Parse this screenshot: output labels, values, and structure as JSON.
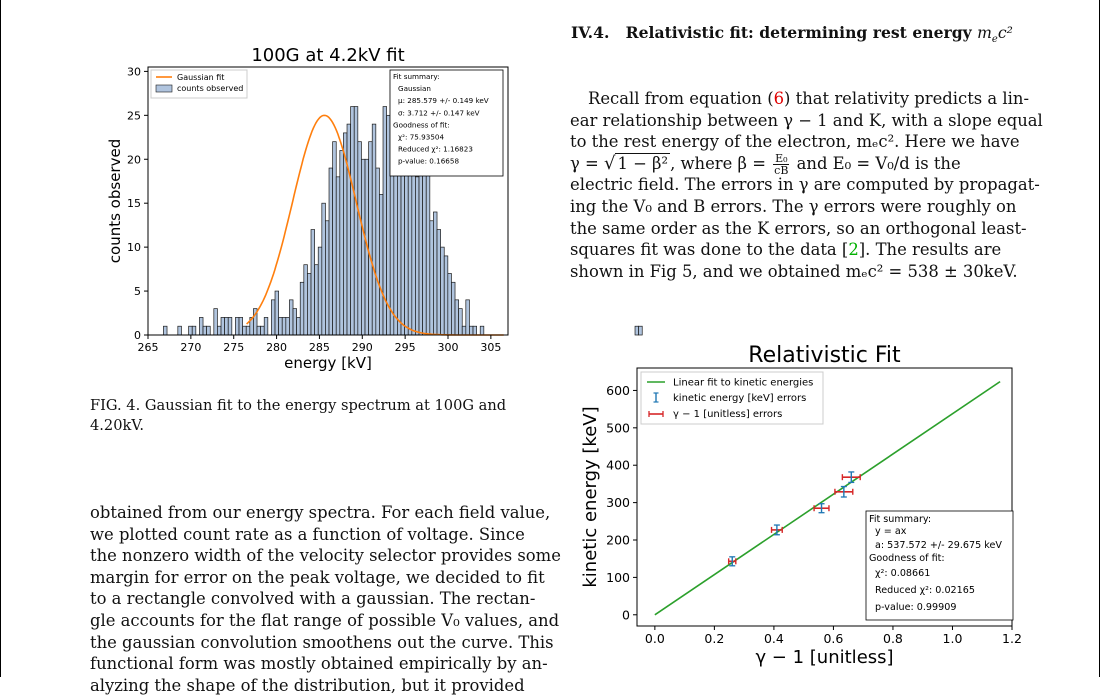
{
  "section": {
    "number": "IV.4.",
    "title": "Relativistic fit: determining rest energy",
    "title_symbol": "m",
    "title_symbol_sub": "e",
    "title_symbol_tail": "c²"
  },
  "right_text": {
    "l1a": "Recall from equation (",
    "l1_ref": "6",
    "l1b": ") that relativity predicts a lin-",
    "l2": "ear relationship between γ − 1 and K, with a slope equal",
    "l3": "to the rest energy of the electron, mₑc². Here we have",
    "l4a": "γ  =  ",
    "l4_sqrt": "1 − β²",
    "l4b": ", where  β  = ",
    "l4_num": "E₀",
    "l4_den": "cB",
    "l4c": " and  E₀  =  V₀/d  is the",
    "l5": "electric field. The errors in γ are computed by propagat-",
    "l6": "ing the V₀ and B errors. The γ errors were roughly on",
    "l7": "the same order as the K errors, so an orthogonal least-",
    "l8a": "squares fit was done to the data [",
    "l8_ref": "2",
    "l8b": "].  The results are",
    "l9": "shown in Fig 5, and we obtained mₑc² = 538 ± 30keV."
  },
  "fig4_caption": {
    "l1": "FIG. 4.  Gaussian fit to the energy spectrum at 100G and",
    "l2": "4.20kV."
  },
  "left_text": {
    "l1": "obtained from our energy spectra. For each field value,",
    "l2": "we plotted count rate as a function of voltage.  Since",
    "l3": "the nonzero width of the velocity selector provides some",
    "l4": "margin for error on the peak voltage, we decided to fit",
    "l5": "to a rectangle convolved with a gaussian. The rectan-",
    "l6": "gle accounts for the flat range of possible V₀ values, and",
    "l7": "the gaussian convolution smoothens out the curve. This",
    "l8": "functional form was mostly obtained empirically by an-",
    "l9": "alyzing the shape of the distribution, but it provided"
  },
  "colors": {
    "bar_fill": "#b0c4de",
    "gaussian": "#ff7f0e",
    "linear_fit": "#2ca02c",
    "kinetic_err": "#1f77b4",
    "gamma_err": "#d62728"
  },
  "chart_data": [
    {
      "type": "bar",
      "title": "100G at 4.2kV fit",
      "xlabel": "energy [kV]",
      "ylabel": "counts observed",
      "xlim": [
        265,
        307
      ],
      "ylim": [
        0,
        30.5
      ],
      "xticks": [
        265,
        270,
        275,
        280,
        285,
        290,
        295,
        300,
        305
      ],
      "yticks": [
        0,
        5,
        10,
        15,
        20,
        25,
        30
      ],
      "bin_width": 0.42,
      "bin_start": 266.8,
      "values": [
        1,
        0,
        0,
        0,
        1,
        0,
        0,
        1,
        1,
        0,
        2,
        1,
        1,
        0,
        3,
        1,
        2,
        2,
        2,
        0,
        2,
        2,
        1,
        1,
        2,
        3,
        1,
        1,
        2,
        0,
        4,
        5,
        2,
        2,
        2,
        4,
        3,
        2,
        6,
        8,
        7,
        12,
        8,
        10,
        15,
        13,
        19,
        22,
        18,
        21,
        23,
        24,
        26,
        26,
        22,
        20,
        20,
        22,
        24,
        19,
        16,
        26,
        25,
        29,
        21,
        24,
        23,
        26,
        19,
        20,
        18,
        22,
        25,
        20,
        13,
        14,
        12,
        10,
        9,
        7,
        6,
        4,
        3,
        1,
        4,
        1,
        1,
        0,
        1,
        0,
        0,
        0,
        0,
        0,
        0,
        0,
        0,
        0,
        0,
        0,
        0,
        0,
        0,
        0,
        0,
        0,
        0,
        0,
        0,
        0,
        0,
        0,
        0,
        0,
        0,
        0,
        0,
        0,
        0,
        0,
        0,
        0,
        0,
        0,
        0,
        0,
        0,
        0,
        0,
        0,
        0,
        1,
        1,
        0,
        0,
        0
      ],
      "fit": {
        "mu": 285.579,
        "sigma": 3.712,
        "amplitude": 25
      },
      "fit_range": [
        276.5,
        306.5
      ],
      "legend": [
        "Gaussian fit",
        "counts observed"
      ],
      "legend_position": "top-left",
      "summary": [
        "Fit summary:",
        "Gaussian",
        "μ: 285.579 +/- 0.149 keV",
        "σ: 3.712 +/- 0.147 keV",
        "Goodness of fit:",
        "χ²: 75.93504",
        "Reduced χ²: 1.16823",
        "p-value: 0.16658"
      ]
    },
    {
      "type": "scatter",
      "title": "Relativistic Fit",
      "xlabel": "γ − 1 [unitless]",
      "ylabel": "kinetic energy [keV]",
      "xlim": [
        -0.06,
        1.2
      ],
      "ylim": [
        -30,
        660
      ],
      "xticks": [
        0.0,
        0.2,
        0.4,
        0.6,
        0.8,
        1.0,
        1.2
      ],
      "yticks": [
        0,
        100,
        200,
        300,
        400,
        500,
        600
      ],
      "points": [
        {
          "x": 0.26,
          "y": 143,
          "xerr": 0.012,
          "yerr": 12
        },
        {
          "x": 0.41,
          "y": 227,
          "xerr": 0.018,
          "yerr": 13
        },
        {
          "x": 0.56,
          "y": 285,
          "xerr": 0.025,
          "yerr": 12
        },
        {
          "x": 0.635,
          "y": 329,
          "xerr": 0.03,
          "yerr": 14
        },
        {
          "x": 0.66,
          "y": 368,
          "xerr": 0.03,
          "yerr": 14
        }
      ],
      "fit_slope": 537.572,
      "fit_xrange": [
        0.0,
        1.16
      ],
      "legend": [
        "Linear fit to kinetic energies",
        "kinetic energy [keV] errors",
        "γ − 1 [unitless] errors"
      ],
      "legend_position": "top-left",
      "summary": [
        "Fit summary:",
        "y = ax",
        "a: 537.572 +/- 29.675 keV",
        "Goodness of fit:",
        "χ²: 0.08661",
        "Reduced χ²: 0.02165",
        "p-value: 0.99909"
      ]
    }
  ]
}
